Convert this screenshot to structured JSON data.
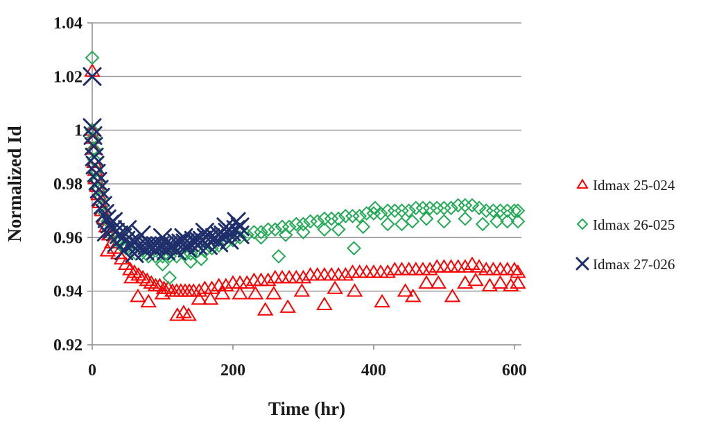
{
  "chart_data": {
    "type": "scatter",
    "title": "",
    "xlabel": "Time (hr)",
    "ylabel": "Normalized Id",
    "xlim": [
      0,
      610
    ],
    "ylim": [
      0.92,
      1.04
    ],
    "xticks": [
      0,
      200,
      400,
      600
    ],
    "xtick_labels": [
      "0",
      "200",
      "400",
      "600"
    ],
    "yticks": [
      0.92,
      0.94,
      0.96,
      0.98,
      1.0,
      1.02,
      1.04
    ],
    "ytick_labels": [
      "0.92",
      "0.94",
      "0.96",
      "0.98",
      "1",
      "1.02",
      "1.04"
    ],
    "grid": "horizontal",
    "legend_position": "right",
    "series": [
      {
        "name": "Idmax 25-024",
        "marker": "triangle",
        "color": "#ff0000",
        "points": [
          [
            0,
            1.0
          ],
          [
            0,
            1.022
          ],
          [
            1,
            0.997
          ],
          [
            2,
            0.993
          ],
          [
            3,
            0.988
          ],
          [
            4,
            0.985
          ],
          [
            5,
            0.982
          ],
          [
            7,
            0.979
          ],
          [
            9,
            0.976
          ],
          [
            11,
            0.973
          ],
          [
            14,
            0.97
          ],
          [
            17,
            0.967
          ],
          [
            20,
            0.964
          ],
          [
            24,
            0.961
          ],
          [
            28,
            0.958
          ],
          [
            32,
            0.956
          ],
          [
            37,
            0.954
          ],
          [
            42,
            0.952
          ],
          [
            48,
            0.95
          ],
          [
            54,
            0.948
          ],
          [
            60,
            0.947
          ],
          [
            66,
            0.946
          ],
          [
            72,
            0.945
          ],
          [
            78,
            0.944
          ],
          [
            84,
            0.943
          ],
          [
            90,
            0.942
          ],
          [
            96,
            0.942
          ],
          [
            102,
            0.941
          ],
          [
            108,
            0.941
          ],
          [
            114,
            0.94
          ],
          [
            120,
            0.94
          ],
          [
            126,
            0.94
          ],
          [
            132,
            0.94
          ],
          [
            138,
            0.94
          ],
          [
            144,
            0.94
          ],
          [
            152,
            0.94
          ],
          [
            160,
            0.941
          ],
          [
            170,
            0.941
          ],
          [
            180,
            0.942
          ],
          [
            190,
            0.942
          ],
          [
            200,
            0.943
          ],
          [
            210,
            0.943
          ],
          [
            220,
            0.943
          ],
          [
            230,
            0.944
          ],
          [
            240,
            0.944
          ],
          [
            250,
            0.944
          ],
          [
            260,
            0.945
          ],
          [
            270,
            0.945
          ],
          [
            280,
            0.945
          ],
          [
            290,
            0.945
          ],
          [
            300,
            0.945
          ],
          [
            310,
            0.946
          ],
          [
            320,
            0.946
          ],
          [
            330,
            0.946
          ],
          [
            340,
            0.946
          ],
          [
            350,
            0.946
          ],
          [
            360,
            0.946
          ],
          [
            370,
            0.947
          ],
          [
            380,
            0.947
          ],
          [
            390,
            0.947
          ],
          [
            400,
            0.947
          ],
          [
            410,
            0.947
          ],
          [
            420,
            0.947
          ],
          [
            430,
            0.948
          ],
          [
            440,
            0.948
          ],
          [
            450,
            0.948
          ],
          [
            460,
            0.948
          ],
          [
            470,
            0.948
          ],
          [
            480,
            0.948
          ],
          [
            490,
            0.949
          ],
          [
            500,
            0.949
          ],
          [
            510,
            0.949
          ],
          [
            520,
            0.949
          ],
          [
            530,
            0.949
          ],
          [
            540,
            0.95
          ],
          [
            550,
            0.949
          ],
          [
            560,
            0.948
          ],
          [
            570,
            0.948
          ],
          [
            580,
            0.948
          ],
          [
            590,
            0.948
          ],
          [
            600,
            0.948
          ],
          [
            605,
            0.947
          ],
          [
            22,
            0.955
          ],
          [
            56,
            0.945
          ],
          [
            65,
            0.938
          ],
          [
            80,
            0.936
          ],
          [
            100,
            0.939
          ],
          [
            121,
            0.931
          ],
          [
            130,
            0.932
          ],
          [
            137,
            0.931
          ],
          [
            152,
            0.937
          ],
          [
            168,
            0.937
          ],
          [
            185,
            0.939
          ],
          [
            210,
            0.939
          ],
          [
            232,
            0.939
          ],
          [
            246,
            0.933
          ],
          [
            258,
            0.939
          ],
          [
            278,
            0.934
          ],
          [
            298,
            0.94
          ],
          [
            330,
            0.935
          ],
          [
            345,
            0.941
          ],
          [
            373,
            0.94
          ],
          [
            412,
            0.936
          ],
          [
            445,
            0.94
          ],
          [
            456,
            0.938
          ],
          [
            475,
            0.943
          ],
          [
            492,
            0.943
          ],
          [
            512,
            0.938
          ],
          [
            530,
            0.943
          ],
          [
            545,
            0.944
          ],
          [
            565,
            0.942
          ],
          [
            580,
            0.943
          ],
          [
            595,
            0.942
          ],
          [
            605,
            0.943
          ]
        ]
      },
      {
        "name": "Idmax 26-025",
        "marker": "diamond",
        "color": "#22aa55",
        "points": [
          [
            0,
            1.0
          ],
          [
            0,
            1.027
          ],
          [
            1,
            0.997
          ],
          [
            2,
            0.993
          ],
          [
            3,
            0.989
          ],
          [
            5,
            0.985
          ],
          [
            7,
            0.981
          ],
          [
            9,
            0.978
          ],
          [
            12,
            0.975
          ],
          [
            15,
            0.972
          ],
          [
            18,
            0.969
          ],
          [
            22,
            0.966
          ],
          [
            26,
            0.963
          ],
          [
            31,
            0.961
          ],
          [
            36,
            0.959
          ],
          [
            42,
            0.957
          ],
          [
            48,
            0.956
          ],
          [
            55,
            0.955
          ],
          [
            62,
            0.954
          ],
          [
            70,
            0.954
          ],
          [
            80,
            0.953
          ],
          [
            90,
            0.953
          ],
          [
            100,
            0.953
          ],
          [
            110,
            0.953
          ],
          [
            120,
            0.953
          ],
          [
            130,
            0.954
          ],
          [
            140,
            0.954
          ],
          [
            150,
            0.955
          ],
          [
            160,
            0.955
          ],
          [
            170,
            0.956
          ],
          [
            180,
            0.957
          ],
          [
            190,
            0.958
          ],
          [
            200,
            0.959
          ],
          [
            210,
            0.96
          ],
          [
            220,
            0.961
          ],
          [
            230,
            0.962
          ],
          [
            240,
            0.962
          ],
          [
            250,
            0.963
          ],
          [
            260,
            0.963
          ],
          [
            270,
            0.964
          ],
          [
            280,
            0.964
          ],
          [
            290,
            0.965
          ],
          [
            300,
            0.965
          ],
          [
            310,
            0.966
          ],
          [
            320,
            0.966
          ],
          [
            330,
            0.967
          ],
          [
            340,
            0.967
          ],
          [
            350,
            0.967
          ],
          [
            360,
            0.968
          ],
          [
            370,
            0.968
          ],
          [
            380,
            0.968
          ],
          [
            390,
            0.969
          ],
          [
            400,
            0.969
          ],
          [
            410,
            0.969
          ],
          [
            420,
            0.97
          ],
          [
            430,
            0.97
          ],
          [
            440,
            0.97
          ],
          [
            450,
            0.97
          ],
          [
            460,
            0.971
          ],
          [
            470,
            0.971
          ],
          [
            480,
            0.971
          ],
          [
            490,
            0.971
          ],
          [
            500,
            0.971
          ],
          [
            510,
            0.971
          ],
          [
            520,
            0.972
          ],
          [
            530,
            0.972
          ],
          [
            540,
            0.972
          ],
          [
            550,
            0.971
          ],
          [
            560,
            0.97
          ],
          [
            570,
            0.97
          ],
          [
            580,
            0.97
          ],
          [
            590,
            0.97
          ],
          [
            600,
            0.97
          ],
          [
            605,
            0.97
          ],
          [
            110,
            0.945
          ],
          [
            100,
            0.95
          ],
          [
            140,
            0.951
          ],
          [
            155,
            0.952
          ],
          [
            240,
            0.96
          ],
          [
            265,
            0.953
          ],
          [
            275,
            0.961
          ],
          [
            300,
            0.962
          ],
          [
            330,
            0.963
          ],
          [
            350,
            0.963
          ],
          [
            372,
            0.956
          ],
          [
            385,
            0.964
          ],
          [
            402,
            0.971
          ],
          [
            420,
            0.965
          ],
          [
            440,
            0.965
          ],
          [
            455,
            0.966
          ],
          [
            475,
            0.967
          ],
          [
            500,
            0.966
          ],
          [
            530,
            0.967
          ],
          [
            555,
            0.965
          ],
          [
            575,
            0.966
          ],
          [
            590,
            0.966
          ],
          [
            605,
            0.966
          ]
        ]
      },
      {
        "name": "Idmax 27-026",
        "marker": "x",
        "color": "#1f2f6b",
        "points": [
          [
            0,
            1.02
          ],
          [
            0,
            1.001
          ],
          [
            1,
            0.998
          ],
          [
            2,
            0.994
          ],
          [
            3,
            0.99
          ],
          [
            4,
            0.987
          ],
          [
            6,
            0.984
          ],
          [
            8,
            0.981
          ],
          [
            10,
            0.978
          ],
          [
            12,
            0.975
          ],
          [
            15,
            0.972
          ],
          [
            18,
            0.969
          ],
          [
            21,
            0.967
          ],
          [
            25,
            0.965
          ],
          [
            29,
            0.963
          ],
          [
            33,
            0.962
          ],
          [
            38,
            0.961
          ],
          [
            43,
            0.96
          ],
          [
            48,
            0.959
          ],
          [
            54,
            0.958
          ],
          [
            60,
            0.958
          ],
          [
            66,
            0.957
          ],
          [
            72,
            0.957
          ],
          [
            78,
            0.957
          ],
          [
            84,
            0.957
          ],
          [
            90,
            0.957
          ],
          [
            96,
            0.957
          ],
          [
            102,
            0.957
          ],
          [
            108,
            0.957
          ],
          [
            114,
            0.957
          ],
          [
            120,
            0.958
          ],
          [
            126,
            0.958
          ],
          [
            132,
            0.958
          ],
          [
            138,
            0.958
          ],
          [
            144,
            0.959
          ],
          [
            150,
            0.959
          ],
          [
            156,
            0.959
          ],
          [
            162,
            0.96
          ],
          [
            168,
            0.96
          ],
          [
            174,
            0.96
          ],
          [
            180,
            0.961
          ],
          [
            186,
            0.961
          ],
          [
            192,
            0.962
          ],
          [
            198,
            0.962
          ],
          [
            204,
            0.963
          ],
          [
            210,
            0.964
          ],
          [
            20,
            0.962
          ],
          [
            35,
            0.958
          ],
          [
            45,
            0.955
          ],
          [
            60,
            0.954
          ],
          [
            75,
            0.955
          ],
          [
            90,
            0.955
          ],
          [
            105,
            0.955
          ],
          [
            120,
            0.955
          ],
          [
            135,
            0.956
          ],
          [
            150,
            0.957
          ],
          [
            165,
            0.957
          ],
          [
            180,
            0.958
          ],
          [
            195,
            0.959
          ],
          [
            210,
            0.961
          ],
          [
            30,
            0.966
          ],
          [
            50,
            0.963
          ],
          [
            70,
            0.961
          ],
          [
            100,
            0.96
          ],
          [
            130,
            0.96
          ],
          [
            160,
            0.962
          ],
          [
            190,
            0.964
          ],
          [
            205,
            0.966
          ]
        ]
      }
    ]
  }
}
